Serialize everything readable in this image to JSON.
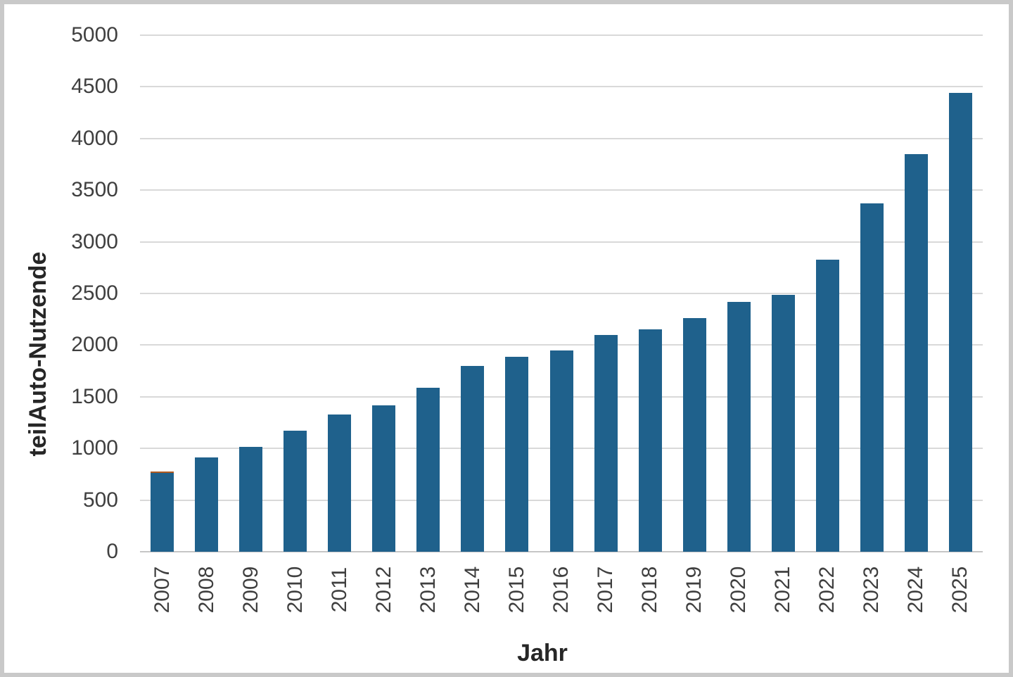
{
  "chart_data": {
    "type": "bar",
    "title": "",
    "xlabel": "Jahr",
    "ylabel": "teilAuto-Nutzende",
    "categories": [
      "2007",
      "2008",
      "2009",
      "2010",
      "2011",
      "2012",
      "2013",
      "2014",
      "2015",
      "2016",
      "2017",
      "2018",
      "2019",
      "2020",
      "2021",
      "2022",
      "2023",
      "2024",
      "2025"
    ],
    "series": [
      {
        "name": "teilAuto-Nutzende",
        "color": "#1f618c",
        "values": [
          760,
          915,
          1015,
          1170,
          1330,
          1415,
          1590,
          1800,
          1885,
          1950,
          2100,
          2150,
          2260,
          2420,
          2485,
          2830,
          3375,
          3850,
          4440
        ]
      },
      {
        "name": "orange-cap-segment",
        "color": "#b05a1f",
        "values": [
          15,
          0,
          0,
          0,
          0,
          0,
          0,
          0,
          0,
          0,
          0,
          0,
          0,
          0,
          0,
          0,
          0,
          0,
          0
        ]
      }
    ],
    "ylim": [
      0,
      5000
    ],
    "yticks": [
      0,
      500,
      1000,
      1500,
      2000,
      2500,
      3000,
      3500,
      4000,
      4500,
      5000
    ],
    "grid": true,
    "legend_position": "none"
  },
  "colors": {
    "bar_blue": "#1f618c",
    "bar_orange": "#b05a1f",
    "gridline": "#d9d9d9",
    "axis_line": "#c6c6c6",
    "tick_text": "#3f3f3f",
    "title_text": "#262626",
    "frame_border": "#c9c9c9",
    "background": "#ffffff"
  }
}
